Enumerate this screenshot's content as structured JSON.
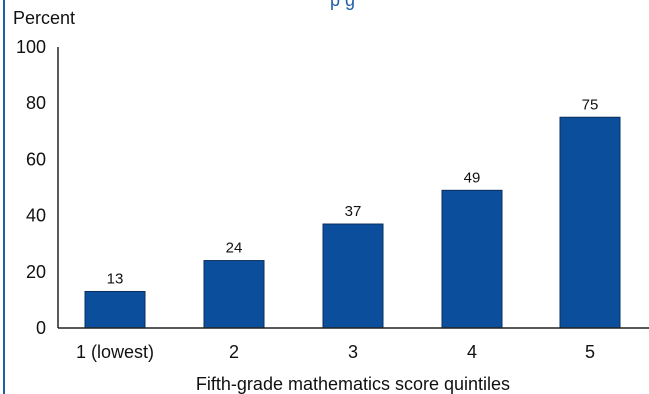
{
  "colors": {
    "bar": "#0b4f9c",
    "bar_stroke": "#0a2f5e",
    "border": "#1f5fa8",
    "axis": "#222222",
    "title": "#1f5fa8"
  },
  "chart_data": {
    "type": "bar",
    "title_fragment": "p g",
    "ylabel": "Percent",
    "xlabel": "Fifth-grade mathematics score quintiles",
    "categories": [
      "1 (lowest)",
      "2",
      "3",
      "4",
      "5"
    ],
    "values": [
      13,
      24,
      37,
      49,
      75
    ],
    "ylim": [
      0,
      100
    ],
    "yticks": [
      0,
      20,
      40,
      60,
      80,
      100
    ],
    "grid": false,
    "legend": "none"
  }
}
